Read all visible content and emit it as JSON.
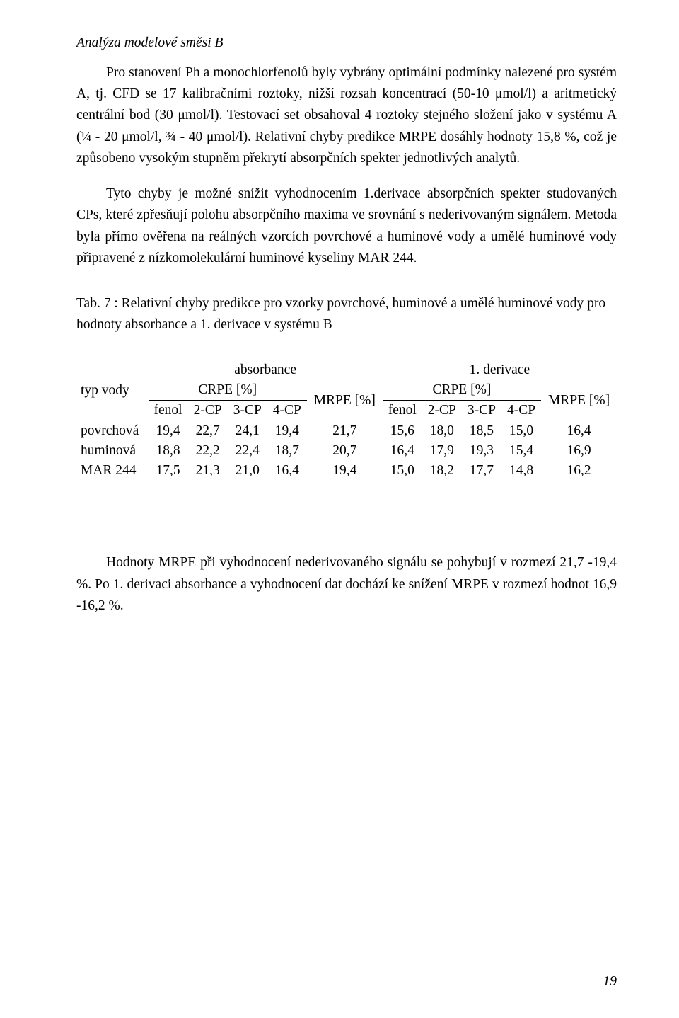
{
  "heading": "Analýza modelové směsi B",
  "para1": "Pro stanovení Ph a monochlorfenolů byly vybrány optimální podmínky nalezené pro systém A, tj. CFD se 17 kalibračními roztoky, nižší rozsah koncentrací (50-10 μmol/l) a aritmetický centrální bod (30 μmol/l). Testovací set obsahoval 4 roztoky stejného složení jako v systému A (¼ - 20 μmol/l, ¾ - 40 μmol/l). Relativní chyby predikce MRPE dosáhly hodnoty 15,8 %, což je způsobeno vysokým stupněm překrytí absorpčních spekter jednotlivých analytů.",
  "para2": "Tyto chyby je možné snížit vyhodnocením 1.derivace absorpčních spekter studovaných CPs, které zpřesňují polohu absorpčního maxima ve srovnání s nederivovaným signálem. Metoda byla přímo ověřena na reálných vzorcích povrchové a huminové vody a umělé huminové vody připravené z nízkomolekulární huminové kyseliny MAR 244.",
  "tableCaption": "Tab. 7 : Relativní chyby predikce pro vzorky povrchové, huminové a umělé huminové vody pro hodnoty absorbance a 1. derivace v systému B",
  "table": {
    "rowHeaderLabel": "typ vody",
    "group1": "absorbance",
    "group2": "1. derivace",
    "subhead_crpe": "CRPE [%]",
    "subhead_mrpe": "MRPE [%]",
    "cols": [
      "fenol",
      "2-CP",
      "3-CP",
      "4-CP"
    ],
    "rows": [
      {
        "label": "povrchová",
        "a": [
          "19,4",
          "22,7",
          "24,1",
          "19,4"
        ],
        "aMrpe": "21,7",
        "d": [
          "15,6",
          "18,0",
          "18,5",
          "15,0"
        ],
        "dMrpe": "16,4"
      },
      {
        "label": "huminová",
        "a": [
          "18,8",
          "22,2",
          "22,4",
          "18,7"
        ],
        "aMrpe": "20,7",
        "d": [
          "16,4",
          "17,9",
          "19,3",
          "15,4"
        ],
        "dMrpe": "16,9"
      },
      {
        "label": "MAR 244",
        "a": [
          "17,5",
          "21,3",
          "21,0",
          "16,4"
        ],
        "aMrpe": "19,4",
        "d": [
          "15,0",
          "18,2",
          "17,7",
          "14,8"
        ],
        "dMrpe": "16,2"
      }
    ]
  },
  "conclusion": "Hodnoty MRPE při vyhodnocení nederivovaného signálu se pohybují v rozmezí 21,7 -19,4 %. Po 1. derivaci absorbance a vyhodnocení dat dochází ke snížení MRPE v rozmezí hodnot 16,9 -16,2 %.",
  "pageNumber": "19"
}
